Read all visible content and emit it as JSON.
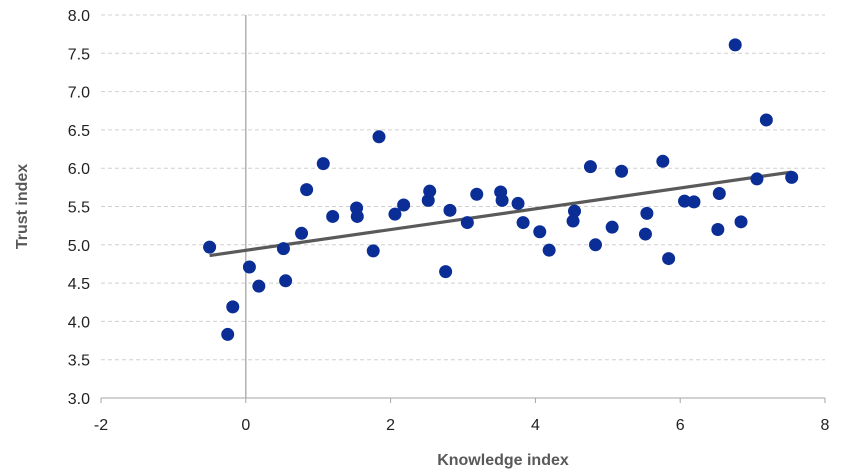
{
  "chart_data": {
    "type": "scatter",
    "title": "",
    "xlabel": "Knowledge index",
    "ylabel": "Trust index",
    "xlim": [
      -2,
      8
    ],
    "ylim": [
      3.0,
      8.0
    ],
    "x_ticks": [
      "-2",
      "0",
      "2",
      "4",
      "6",
      "8"
    ],
    "y_ticks": [
      "3.0",
      "3.5",
      "4.0",
      "4.5",
      "5.0",
      "5.5",
      "6.0",
      "6.5",
      "7.0",
      "7.5",
      "8.0"
    ],
    "grid": "horizontal-dashed",
    "legend": "none",
    "colors": {
      "points": "#0a2d96",
      "trendline": "#5a5a5a",
      "grid": "#d0d0d0",
      "axis": "#a6a6a6"
    },
    "series": [
      {
        "points": [
          [
            -0.5,
            4.97
          ],
          [
            -0.25,
            3.83
          ],
          [
            -0.18,
            4.19
          ],
          [
            0.05,
            4.71
          ],
          [
            0.18,
            4.46
          ],
          [
            0.52,
            4.95
          ],
          [
            0.55,
            4.53
          ],
          [
            0.77,
            5.15
          ],
          [
            0.84,
            5.72
          ],
          [
            1.07,
            6.06
          ],
          [
            1.2,
            5.37
          ],
          [
            1.53,
            5.48
          ],
          [
            1.54,
            5.37
          ],
          [
            1.76,
            4.92
          ],
          [
            1.84,
            6.41
          ],
          [
            2.06,
            5.4
          ],
          [
            2.18,
            5.52
          ],
          [
            2.52,
            5.58
          ],
          [
            2.54,
            5.7
          ],
          [
            2.76,
            4.65
          ],
          [
            2.82,
            5.45
          ],
          [
            3.06,
            5.29
          ],
          [
            3.19,
            5.66
          ],
          [
            3.52,
            5.69
          ],
          [
            3.54,
            5.58
          ],
          [
            3.76,
            5.54
          ],
          [
            3.83,
            5.29
          ],
          [
            4.06,
            5.17
          ],
          [
            4.19,
            4.93
          ],
          [
            4.52,
            5.31
          ],
          [
            4.54,
            5.44
          ],
          [
            4.76,
            6.02
          ],
          [
            4.83,
            5.0
          ],
          [
            5.06,
            5.23
          ],
          [
            5.19,
            5.96
          ],
          [
            5.52,
            5.14
          ],
          [
            5.54,
            5.41
          ],
          [
            5.76,
            6.09
          ],
          [
            5.84,
            4.82
          ],
          [
            6.06,
            5.57
          ],
          [
            6.19,
            5.56
          ],
          [
            6.52,
            5.2
          ],
          [
            6.54,
            5.67
          ],
          [
            6.76,
            7.61
          ],
          [
            6.84,
            5.3
          ],
          [
            7.06,
            5.86
          ],
          [
            7.19,
            6.63
          ],
          [
            7.54,
            5.88
          ]
        ]
      }
    ],
    "trendline": {
      "x": [
        -0.5,
        7.54
      ],
      "y": [
        4.86,
        5.95
      ]
    }
  }
}
